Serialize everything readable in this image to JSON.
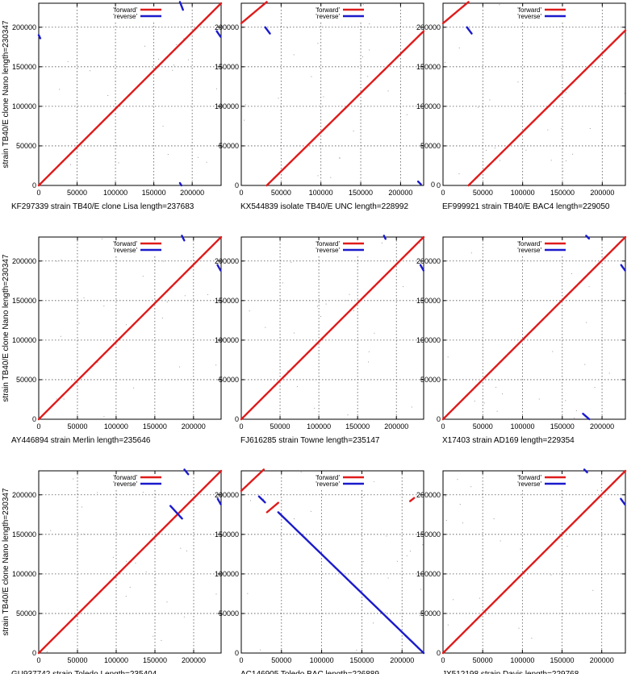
{
  "ylabel": "strain TB40/E clone Nano length=230347",
  "legend": {
    "forward": "'forward'",
    "reverse": "'reverse'"
  },
  "colors": {
    "forward": "#e01b1b",
    "reverse": "#1a1acc",
    "grid": "#555555",
    "noise": "#9a9a9a"
  },
  "xticks": [
    0,
    50000,
    100000,
    150000,
    200000
  ],
  "yticks": [
    0,
    50000,
    100000,
    150000,
    200000
  ],
  "chart_data": [
    {
      "type": "scatter",
      "xlabel": "KF297339 strain TB40/E clone Lisa length=237683",
      "xlim": [
        0,
        237683
      ],
      "ylim": [
        0,
        230347
      ],
      "forward": [
        [
          [
            0,
            0
          ],
          [
            237683,
            230347
          ]
        ]
      ],
      "reverse": [
        [
          [
            184000,
            232000
          ],
          [
            188000,
            222000
          ]
        ],
        [
          [
            0,
            190000
          ],
          [
            2000,
            186000
          ]
        ],
        [
          [
            232000,
            195000
          ],
          [
            237000,
            188000
          ]
        ],
        [
          [
            184000,
            3000
          ],
          [
            186000,
            0
          ]
        ]
      ]
    },
    {
      "type": "scatter",
      "xlabel": "KX544839 isolate TB40/E UNC length=228992",
      "xlim": [
        0,
        228992
      ],
      "ylim": [
        0,
        230347
      ],
      "forward": [
        [
          [
            0,
            205000
          ],
          [
            32000,
            232000
          ]
        ],
        [
          [
            32000,
            0
          ],
          [
            228992,
            195000
          ]
        ]
      ],
      "reverse": [
        [
          [
            30000,
            200000
          ],
          [
            36000,
            192000
          ]
        ],
        [
          [
            222000,
            5000
          ],
          [
            226000,
            1000
          ]
        ]
      ]
    },
    {
      "type": "scatter",
      "xlabel": "EF999921 strain TB40/E BAC4 length=229050",
      "xlim": [
        0,
        229050
      ],
      "ylim": [
        0,
        230347
      ],
      "forward": [
        [
          [
            0,
            205000
          ],
          [
            32000,
            232000
          ]
        ],
        [
          [
            32000,
            0
          ],
          [
            229050,
            196000
          ]
        ]
      ],
      "reverse": [
        [
          [
            30000,
            200000
          ],
          [
            36000,
            192000
          ]
        ]
      ],
      "annotations": [
        "0"
      ]
    },
    {
      "type": "scatter",
      "xlabel": "AY446894 strain Merlin length=235646",
      "xlim": [
        0,
        235646
      ],
      "ylim": [
        0,
        230347
      ],
      "forward": [
        [
          [
            0,
            0
          ],
          [
            235646,
            230347
          ]
        ]
      ],
      "reverse": [
        [
          [
            185000,
            232000
          ],
          [
            188000,
            226000
          ]
        ],
        [
          [
            231000,
            195000
          ],
          [
            235000,
            188000
          ]
        ]
      ]
    },
    {
      "type": "scatter",
      "xlabel": "FJ616285 strain Towne length=235147",
      "xlim": [
        0,
        235147
      ],
      "ylim": [
        0,
        230347
      ],
      "forward": [
        [
          [
            0,
            0
          ],
          [
            235147,
            230347
          ]
        ]
      ],
      "reverse": [
        [
          [
            184000,
            232000
          ],
          [
            186000,
            228000
          ]
        ],
        [
          [
            231000,
            195000
          ],
          [
            235000,
            188000
          ]
        ]
      ]
    },
    {
      "type": "scatter",
      "xlabel": "X17403 strain AD169 length=229354",
      "xlim": [
        0,
        229354
      ],
      "ylim": [
        0,
        230347
      ],
      "forward": [
        [
          [
            0,
            0
          ],
          [
            229354,
            230347
          ]
        ]
      ],
      "reverse": [
        [
          [
            180000,
            232000
          ],
          [
            184000,
            228000
          ]
        ],
        [
          [
            224000,
            195000
          ],
          [
            229000,
            188000
          ]
        ],
        [
          [
            176000,
            7000
          ],
          [
            184000,
            0
          ]
        ]
      ]
    },
    {
      "type": "scatter",
      "xlabel": "GU937742 strain Toledo Length=235404",
      "xlim": [
        0,
        235404
      ],
      "ylim": [
        0,
        230347
      ],
      "forward": [
        [
          [
            0,
            0
          ],
          [
            235404,
            230347
          ]
        ]
      ],
      "reverse": [
        [
          [
            170000,
            186000
          ],
          [
            185000,
            170000
          ]
        ],
        [
          [
            188000,
            232000
          ],
          [
            193000,
            226000
          ]
        ],
        [
          [
            231000,
            195000
          ],
          [
            235000,
            188000
          ]
        ]
      ]
    },
    {
      "type": "scatter",
      "xlabel": "AC146905 Toledo BAC length=226889",
      "xlim": [
        0,
        226889
      ],
      "ylim": [
        0,
        230347
      ],
      "forward": [
        [
          [
            0,
            205000
          ],
          [
            28000,
            232000
          ]
        ],
        [
          [
            32000,
            178000
          ],
          [
            46000,
            190000
          ]
        ],
        [
          [
            210000,
            192000
          ],
          [
            215000,
            196000
          ]
        ]
      ],
      "reverse": [
        [
          [
            22000,
            198000
          ],
          [
            30000,
            190000
          ]
        ],
        [
          [
            46000,
            178000
          ],
          [
            226889,
            0
          ]
        ]
      ]
    },
    {
      "type": "scatter",
      "xlabel": "JX512198 strain Davis length=229768",
      "xlim": [
        0,
        229768
      ],
      "ylim": [
        0,
        230347
      ],
      "forward": [
        [
          [
            0,
            0
          ],
          [
            229768,
            230347
          ]
        ]
      ],
      "reverse": [
        [
          [
            178000,
            232000
          ],
          [
            182000,
            228000
          ]
        ],
        [
          [
            224000,
            195000
          ],
          [
            229000,
            188000
          ]
        ]
      ]
    }
  ]
}
